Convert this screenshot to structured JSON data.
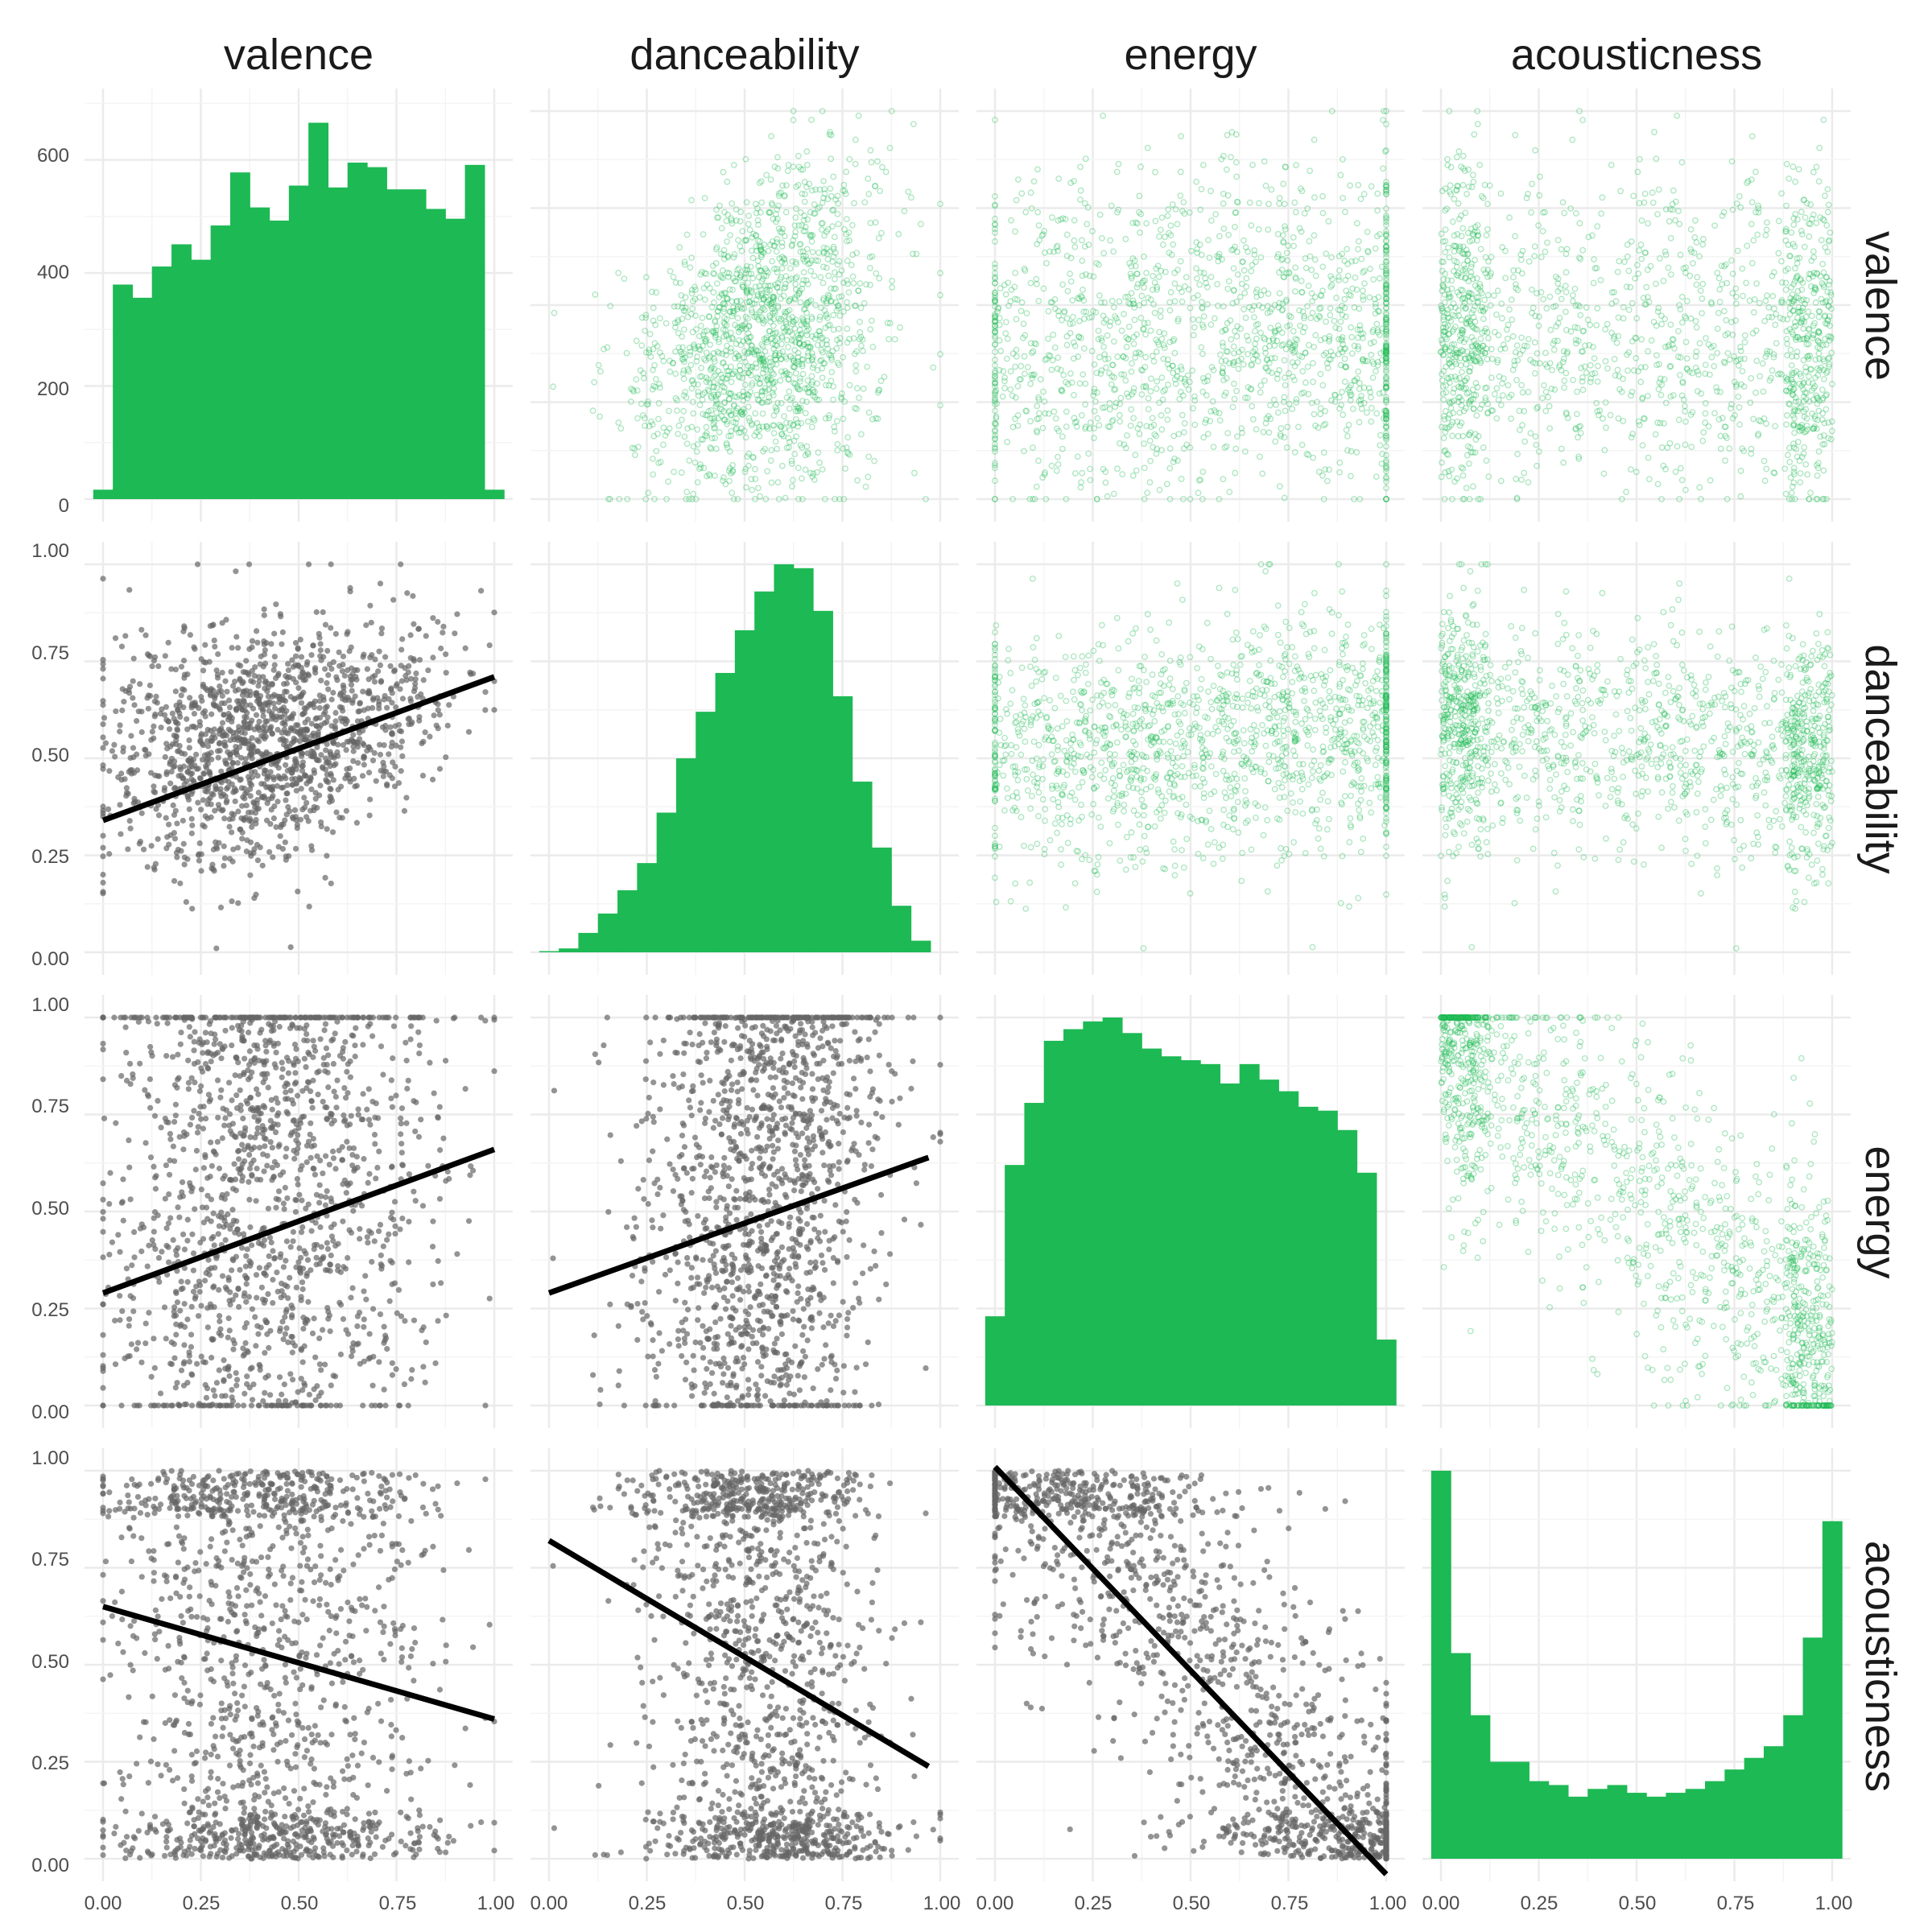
{
  "colors": {
    "background": "#ffffff",
    "grid_major": "#ebebeb",
    "grid_minor": "#f4f4f4",
    "histogram": "#1db954",
    "upper_points": "#1db954",
    "lower_points": "#666666",
    "fit_line": "#000000",
    "strip_text": "#1a1a1a",
    "tick_text": "#4d4d4d"
  },
  "chart_data": {
    "type": "scatter",
    "layout": "pairs-matrix",
    "variables": [
      "valence",
      "danceability",
      "energy",
      "acousticness"
    ],
    "diagonal": "histogram",
    "upper": "scatter (transparent green points)",
    "lower": "scatter (grey points) with linear fit line",
    "x_range": [
      0,
      1
    ],
    "x_ticks": [
      "0.00",
      "0.25",
      "0.50",
      "0.75",
      "1.00"
    ],
    "y_ticks": [
      "0.00",
      "0.25",
      "0.50",
      "0.75",
      "1.00"
    ],
    "count_ticks": [
      "0",
      "200",
      "400",
      "600"
    ],
    "count_range": [
      0,
      700
    ],
    "histograms": {
      "valence": {
        "bin_width": 0.05,
        "bin_centers": [
          0.0,
          0.05,
          0.1,
          0.15,
          0.2,
          0.25,
          0.3,
          0.35,
          0.4,
          0.45,
          0.5,
          0.55,
          0.6,
          0.65,
          0.7,
          0.75,
          0.8,
          0.85,
          0.9,
          0.95,
          1.0
        ],
        "relative_heights": [
          0.025,
          0.57,
          0.535,
          0.618,
          0.677,
          0.636,
          0.727,
          0.868,
          0.775,
          0.74,
          0.833,
          1.0,
          0.828,
          0.894,
          0.882,
          0.823,
          0.823,
          0.771,
          0.745,
          0.888,
          0.025
        ]
      },
      "danceability": {
        "bin_width": 0.05,
        "bin_centers": [
          0.0,
          0.05,
          0.1,
          0.15,
          0.2,
          0.25,
          0.3,
          0.35,
          0.4,
          0.45,
          0.5,
          0.55,
          0.6,
          0.65,
          0.7,
          0.75,
          0.8,
          0.85,
          0.9,
          0.95
        ],
        "relative_heights": [
          0.003,
          0.01,
          0.05,
          0.1,
          0.16,
          0.23,
          0.36,
          0.5,
          0.62,
          0.72,
          0.83,
          0.93,
          1.0,
          0.99,
          0.88,
          0.66,
          0.44,
          0.27,
          0.12,
          0.03
        ]
      },
      "energy": {
        "bin_width": 0.05,
        "bin_centers": [
          0.0,
          0.05,
          0.1,
          0.15,
          0.2,
          0.25,
          0.3,
          0.35,
          0.4,
          0.45,
          0.5,
          0.55,
          0.6,
          0.65,
          0.7,
          0.75,
          0.8,
          0.85,
          0.9,
          0.95,
          1.0
        ],
        "relative_heights": [
          0.23,
          0.62,
          0.78,
          0.94,
          0.97,
          0.99,
          1.0,
          0.96,
          0.92,
          0.9,
          0.89,
          0.88,
          0.83,
          0.88,
          0.84,
          0.81,
          0.77,
          0.76,
          0.71,
          0.6,
          0.17
        ]
      },
      "acousticness": {
        "bin_width": 0.05,
        "bin_centers": [
          0.0,
          0.05,
          0.1,
          0.15,
          0.2,
          0.25,
          0.3,
          0.35,
          0.4,
          0.45,
          0.5,
          0.55,
          0.6,
          0.65,
          0.7,
          0.75,
          0.8,
          0.85,
          0.9,
          0.95,
          1.0
        ],
        "relative_heights": [
          1.0,
          0.53,
          0.37,
          0.25,
          0.25,
          0.2,
          0.19,
          0.16,
          0.18,
          0.19,
          0.17,
          0.16,
          0.17,
          0.18,
          0.2,
          0.23,
          0.26,
          0.29,
          0.37,
          0.57,
          0.87
        ]
      }
    },
    "fit_lines": [
      {
        "x": "valence",
        "y": "danceability",
        "y_at_0": 0.34,
        "y_at_1": 0.71
      },
      {
        "x": "valence",
        "y": "energy",
        "y_at_0": 0.29,
        "y_at_1": 0.66
      },
      {
        "x": "danceability",
        "y": "energy",
        "y_at_0": 0.29,
        "y_at_1": 0.65
      },
      {
        "x": "valence",
        "y": "acousticness",
        "y_at_0": 0.65,
        "y_at_1": 0.36
      },
      {
        "x": "danceability",
        "y": "acousticness",
        "y_at_0": 0.82,
        "y_at_1": 0.22
      },
      {
        "x": "energy",
        "y": "acousticness",
        "y_at_0": 1.01,
        "y_at_1": -0.04
      }
    ]
  }
}
